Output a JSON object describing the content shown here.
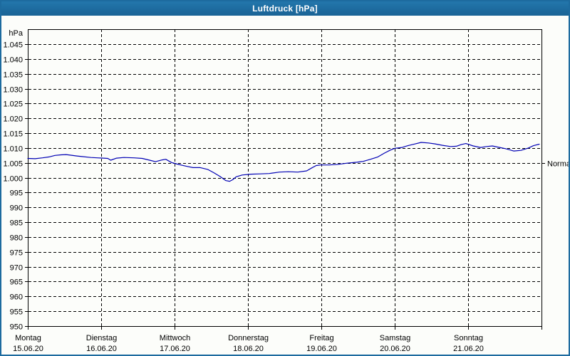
{
  "window": {
    "title": "Luftdruck [hPa]"
  },
  "colors": {
    "frame": "#1d6b9f",
    "titlebar_text": "#ffffff",
    "grid": "#000000",
    "background": "#fcfdfa",
    "series": "#0000b4"
  },
  "chart_data": {
    "type": "line",
    "title": "Luftdruck [hPa]",
    "unit_label": "hPa",
    "legend": "none",
    "grid": "dashed",
    "y_axis": {
      "min": 950,
      "max": 1045,
      "tick_step": 5,
      "tick_labels": [
        "1.045",
        "1.040",
        "1.035",
        "1.030",
        "1.025",
        "1.020",
        "1.015",
        "1.010",
        "1.005",
        "1.000",
        "995",
        "990",
        "985",
        "980",
        "975",
        "970",
        "965",
        "960",
        "955",
        "950"
      ]
    },
    "x_axis": {
      "days": [
        {
          "label": "Montag",
          "date": "15.06.20"
        },
        {
          "label": "Dienstag",
          "date": "16.06.20"
        },
        {
          "label": "Mittwoch",
          "date": "17.06.20"
        },
        {
          "label": "Donnerstag",
          "date": "18.06.20"
        },
        {
          "label": "Freitag",
          "date": "19.06.20"
        },
        {
          "label": "Samstag",
          "date": "20.06.20"
        },
        {
          "label": "Sonntag",
          "date": "21.06.20"
        }
      ]
    },
    "normal_marker": {
      "label": "Normal",
      "value": 1005
    },
    "series": [
      {
        "name": "Luftdruck",
        "color": "#0000b4",
        "points": [
          [
            0.0,
            1006.5
          ],
          [
            0.1,
            1006.4
          ],
          [
            0.2,
            1006.7
          ],
          [
            0.29,
            1007.0
          ],
          [
            0.37,
            1007.5
          ],
          [
            0.45,
            1007.7
          ],
          [
            0.52,
            1007.8
          ],
          [
            0.58,
            1007.6
          ],
          [
            0.67,
            1007.3
          ],
          [
            0.75,
            1007.1
          ],
          [
            0.86,
            1006.8
          ],
          [
            0.95,
            1006.7
          ],
          [
            1.03,
            1006.6
          ],
          [
            1.09,
            1006.5
          ],
          [
            1.13,
            1005.9
          ],
          [
            1.21,
            1006.6
          ],
          [
            1.31,
            1006.8
          ],
          [
            1.45,
            1006.7
          ],
          [
            1.56,
            1006.5
          ],
          [
            1.66,
            1005.9
          ],
          [
            1.74,
            1005.4
          ],
          [
            1.83,
            1006.0
          ],
          [
            1.88,
            1006.2
          ],
          [
            1.96,
            1005.1
          ],
          [
            2.02,
            1004.7
          ],
          [
            2.1,
            1004.2
          ],
          [
            2.17,
            1003.8
          ],
          [
            2.25,
            1003.4
          ],
          [
            2.35,
            1003.4
          ],
          [
            2.45,
            1002.8
          ],
          [
            2.54,
            1001.6
          ],
          [
            2.62,
            1000.4
          ],
          [
            2.7,
            999.0
          ],
          [
            2.75,
            998.8
          ],
          [
            2.79,
            999.3
          ],
          [
            2.84,
            1000.3
          ],
          [
            2.92,
            1000.9
          ],
          [
            3.04,
            1001.2
          ],
          [
            3.17,
            1001.3
          ],
          [
            3.29,
            1001.4
          ],
          [
            3.43,
            1001.9
          ],
          [
            3.55,
            1002.0
          ],
          [
            3.68,
            1001.9
          ],
          [
            3.8,
            1002.3
          ],
          [
            3.87,
            1003.3
          ],
          [
            3.93,
            1004.1
          ],
          [
            3.99,
            1004.3
          ],
          [
            4.11,
            1004.3
          ],
          [
            4.23,
            1004.5
          ],
          [
            4.35,
            1004.9
          ],
          [
            4.48,
            1005.2
          ],
          [
            4.57,
            1005.5
          ],
          [
            4.67,
            1006.2
          ],
          [
            4.77,
            1007.0
          ],
          [
            4.86,
            1008.3
          ],
          [
            4.94,
            1009.3
          ],
          [
            5.0,
            1009.9
          ],
          [
            5.1,
            1010.2
          ],
          [
            5.18,
            1010.8
          ],
          [
            5.28,
            1011.4
          ],
          [
            5.36,
            1011.9
          ],
          [
            5.46,
            1011.7
          ],
          [
            5.55,
            1011.4
          ],
          [
            5.65,
            1010.9
          ],
          [
            5.76,
            1010.5
          ],
          [
            5.84,
            1010.6
          ],
          [
            5.91,
            1011.2
          ],
          [
            5.97,
            1011.5
          ],
          [
            6.07,
            1010.7
          ],
          [
            6.17,
            1010.2
          ],
          [
            6.25,
            1010.5
          ],
          [
            6.33,
            1010.7
          ],
          [
            6.43,
            1010.2
          ],
          [
            6.52,
            1009.7
          ],
          [
            6.62,
            1009.0
          ],
          [
            6.72,
            1009.2
          ],
          [
            6.82,
            1010.0
          ],
          [
            6.89,
            1010.8
          ],
          [
            6.97,
            1011.3
          ]
        ]
      }
    ]
  }
}
